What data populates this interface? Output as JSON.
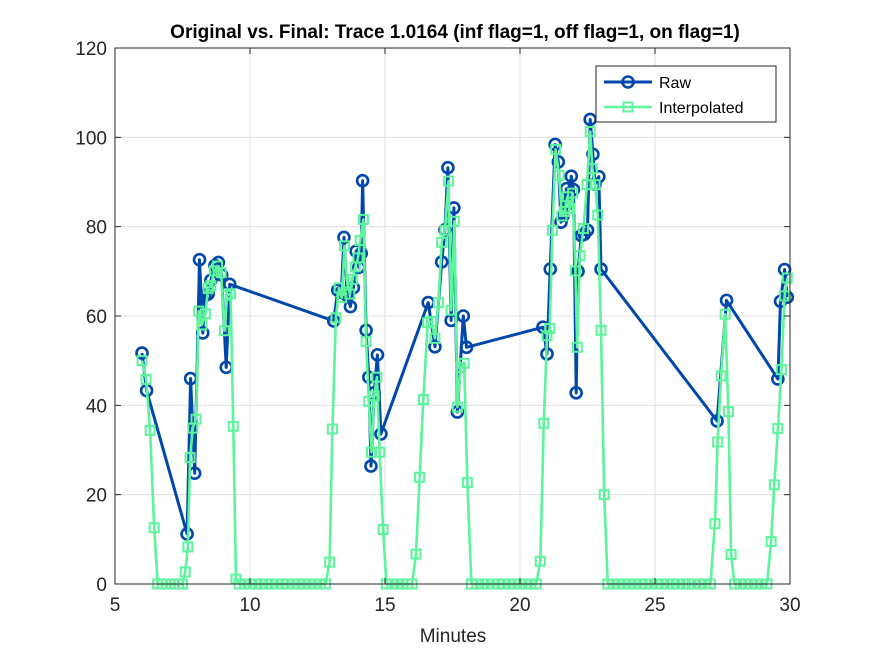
{
  "chart_data": {
    "type": "line",
    "title": "Original vs. Final: Trace 1.0164 (inf flag=1, off flag=1, on flag=1)",
    "xlabel": "Minutes",
    "ylabel": "",
    "xlim": [
      5,
      30
    ],
    "ylim": [
      0,
      120
    ],
    "xticks": [
      5,
      10,
      15,
      20,
      25,
      30
    ],
    "yticks": [
      0,
      20,
      40,
      60,
      80,
      100,
      120
    ],
    "grid": true,
    "legend_position": "top-right",
    "series": [
      {
        "name": "Raw",
        "color": "#0047ab",
        "marker": "circle",
        "points": [
          [
            6.0,
            51.7
          ],
          [
            6.17,
            43.3
          ],
          [
            7.67,
            11.2
          ],
          [
            7.8,
            46.0
          ],
          [
            7.95,
            24.8
          ],
          [
            8.13,
            72.6
          ],
          [
            8.25,
            56.2
          ],
          [
            8.33,
            64.6
          ],
          [
            8.45,
            64.9
          ],
          [
            8.55,
            68.0
          ],
          [
            8.7,
            71.3
          ],
          [
            8.83,
            72.0
          ],
          [
            8.95,
            69.2
          ],
          [
            9.12,
            48.5
          ],
          [
            9.25,
            67.1
          ],
          [
            13.1,
            58.9
          ],
          [
            13.25,
            65.8
          ],
          [
            13.38,
            65.3
          ],
          [
            13.48,
            77.6
          ],
          [
            13.6,
            64.6
          ],
          [
            13.72,
            62.1
          ],
          [
            13.83,
            66.3
          ],
          [
            13.93,
            74.5
          ],
          [
            14.03,
            70.9
          ],
          [
            14.12,
            74.0
          ],
          [
            14.17,
            90.3
          ],
          [
            14.3,
            56.8
          ],
          [
            14.4,
            46.3
          ],
          [
            14.48,
            26.4
          ],
          [
            14.6,
            42.8
          ],
          [
            14.72,
            51.3
          ],
          [
            14.85,
            33.6
          ],
          [
            16.6,
            63.0
          ],
          [
            16.85,
            53.1
          ],
          [
            17.1,
            72.1
          ],
          [
            17.22,
            79.3
          ],
          [
            17.33,
            93.2
          ],
          [
            17.45,
            59.0
          ],
          [
            17.55,
            84.2
          ],
          [
            17.68,
            38.5
          ],
          [
            17.9,
            60.0
          ],
          [
            18.02,
            53.0
          ],
          [
            20.85,
            57.5
          ],
          [
            21.0,
            51.5
          ],
          [
            21.12,
            70.5
          ],
          [
            21.3,
            98.4
          ],
          [
            21.42,
            94.5
          ],
          [
            21.52,
            81.0
          ],
          [
            21.6,
            82.5
          ],
          [
            21.72,
            88.5
          ],
          [
            21.8,
            85.2
          ],
          [
            21.9,
            91.3
          ],
          [
            21.98,
            88.3
          ],
          [
            22.08,
            42.8
          ],
          [
            22.15,
            70.0
          ],
          [
            22.27,
            78.0
          ],
          [
            22.38,
            78.3
          ],
          [
            22.5,
            79.2
          ],
          [
            22.6,
            104.0
          ],
          [
            22.7,
            96.2
          ],
          [
            22.78,
            89.5
          ],
          [
            22.92,
            91.2
          ],
          [
            23.0,
            70.5
          ],
          [
            27.3,
            36.5
          ],
          [
            27.65,
            63.5
          ],
          [
            29.55,
            45.9
          ],
          [
            29.65,
            63.3
          ],
          [
            29.8,
            70.4
          ],
          [
            29.9,
            64.2
          ]
        ]
      },
      {
        "name": "Interpolated",
        "color": "#5cf59b",
        "marker": "square",
        "points": [
          [
            6.0,
            50.0
          ],
          [
            6.15,
            45.8
          ],
          [
            6.3,
            34.4
          ],
          [
            6.45,
            12.6
          ],
          [
            6.58,
            0
          ],
          [
            6.75,
            0
          ],
          [
            6.9,
            0
          ],
          [
            7.05,
            0
          ],
          [
            7.2,
            0
          ],
          [
            7.35,
            0
          ],
          [
            7.5,
            0
          ],
          [
            7.6,
            2.7
          ],
          [
            7.7,
            8.3
          ],
          [
            7.78,
            28.3
          ],
          [
            7.88,
            34.9
          ],
          [
            8.0,
            36.9
          ],
          [
            8.1,
            61.1
          ],
          [
            8.22,
            58.0
          ],
          [
            8.35,
            60.5
          ],
          [
            8.45,
            66.2
          ],
          [
            8.55,
            66.8
          ],
          [
            8.68,
            70.1
          ],
          [
            8.8,
            71.2
          ],
          [
            8.93,
            69.7
          ],
          [
            9.05,
            56.7
          ],
          [
            9.15,
            64.6
          ],
          [
            9.28,
            65.0
          ],
          [
            9.38,
            35.3
          ],
          [
            9.48,
            1.1
          ],
          [
            9.6,
            0
          ],
          [
            9.8,
            0
          ],
          [
            10.0,
            0
          ],
          [
            10.2,
            0
          ],
          [
            10.4,
            0
          ],
          [
            10.6,
            0
          ],
          [
            10.8,
            0
          ],
          [
            11.0,
            0
          ],
          [
            11.2,
            0
          ],
          [
            11.4,
            0
          ],
          [
            11.6,
            0
          ],
          [
            11.8,
            0
          ],
          [
            12.0,
            0
          ],
          [
            12.2,
            0
          ],
          [
            12.4,
            0
          ],
          [
            12.6,
            0
          ],
          [
            12.8,
            0
          ],
          [
            12.95,
            4.9
          ],
          [
            13.05,
            34.7
          ],
          [
            13.18,
            59.6
          ],
          [
            13.3,
            66.3
          ],
          [
            13.4,
            64.1
          ],
          [
            13.5,
            75.7
          ],
          [
            13.6,
            67.4
          ],
          [
            13.7,
            64.9
          ],
          [
            13.8,
            68.2
          ],
          [
            13.9,
            71.0
          ],
          [
            14.0,
            73.0
          ],
          [
            14.08,
            76.9
          ],
          [
            14.2,
            81.6
          ],
          [
            14.3,
            54.3
          ],
          [
            14.4,
            40.9
          ],
          [
            14.5,
            29.5
          ],
          [
            14.6,
            42.1
          ],
          [
            14.7,
            46.3
          ],
          [
            14.8,
            29.5
          ],
          [
            14.93,
            12.2
          ],
          [
            15.05,
            0
          ],
          [
            15.25,
            0
          ],
          [
            15.45,
            0
          ],
          [
            15.65,
            0
          ],
          [
            15.85,
            0
          ],
          [
            16.0,
            0
          ],
          [
            16.15,
            6.7
          ],
          [
            16.28,
            23.9
          ],
          [
            16.42,
            41.3
          ],
          [
            16.58,
            58.5
          ],
          [
            16.72,
            58.8
          ],
          [
            16.85,
            55.0
          ],
          [
            16.98,
            63.0
          ],
          [
            17.1,
            76.5
          ],
          [
            17.22,
            79.2
          ],
          [
            17.35,
            90.2
          ],
          [
            17.45,
            61.3
          ],
          [
            17.57,
            81.2
          ],
          [
            17.68,
            39.6
          ],
          [
            17.8,
            48.5
          ],
          [
            17.93,
            49.4
          ],
          [
            18.05,
            22.7
          ],
          [
            18.2,
            0
          ],
          [
            18.4,
            0
          ],
          [
            18.6,
            0
          ],
          [
            18.8,
            0
          ],
          [
            19.0,
            0
          ],
          [
            19.2,
            0
          ],
          [
            19.4,
            0
          ],
          [
            19.6,
            0
          ],
          [
            19.8,
            0
          ],
          [
            20.0,
            0
          ],
          [
            20.2,
            0
          ],
          [
            20.4,
            0
          ],
          [
            20.6,
            0
          ],
          [
            20.75,
            5.1
          ],
          [
            20.88,
            36.0
          ],
          [
            21.0,
            55.6
          ],
          [
            21.1,
            57.2
          ],
          [
            21.2,
            79.2
          ],
          [
            21.32,
            97.3
          ],
          [
            21.45,
            91.5
          ],
          [
            21.55,
            82.4
          ],
          [
            21.65,
            83.4
          ],
          [
            21.75,
            86.7
          ],
          [
            21.85,
            84.1
          ],
          [
            21.95,
            87.5
          ],
          [
            22.05,
            70.1
          ],
          [
            22.12,
            53.0
          ],
          [
            22.22,
            73.5
          ],
          [
            22.35,
            79.6
          ],
          [
            22.48,
            89.4
          ],
          [
            22.6,
            101.3
          ],
          [
            22.68,
            93.0
          ],
          [
            22.78,
            89.4
          ],
          [
            22.88,
            82.6
          ],
          [
            23.0,
            56.8
          ],
          [
            23.12,
            20.0
          ],
          [
            23.25,
            0
          ],
          [
            23.45,
            0
          ],
          [
            23.65,
            0
          ],
          [
            23.85,
            0
          ],
          [
            24.05,
            0
          ],
          [
            24.25,
            0
          ],
          [
            24.45,
            0
          ],
          [
            24.65,
            0
          ],
          [
            24.85,
            0
          ],
          [
            25.05,
            0
          ],
          [
            25.25,
            0
          ],
          [
            25.45,
            0
          ],
          [
            25.65,
            0
          ],
          [
            25.85,
            0
          ],
          [
            26.05,
            0
          ],
          [
            26.25,
            0
          ],
          [
            26.45,
            0
          ],
          [
            26.65,
            0
          ],
          [
            26.85,
            0
          ],
          [
            27.05,
            0
          ],
          [
            27.22,
            13.5
          ],
          [
            27.32,
            31.8
          ],
          [
            27.45,
            46.6
          ],
          [
            27.6,
            60.4
          ],
          [
            27.72,
            38.6
          ],
          [
            27.82,
            6.6
          ],
          [
            27.95,
            0
          ],
          [
            28.15,
            0
          ],
          [
            28.35,
            0
          ],
          [
            28.55,
            0
          ],
          [
            28.75,
            0
          ],
          [
            28.95,
            0
          ],
          [
            29.15,
            0
          ],
          [
            29.3,
            9.5
          ],
          [
            29.42,
            22.2
          ],
          [
            29.55,
            34.8
          ],
          [
            29.68,
            48.0
          ],
          [
            29.8,
            64.5
          ],
          [
            29.9,
            68.5
          ]
        ]
      }
    ]
  }
}
